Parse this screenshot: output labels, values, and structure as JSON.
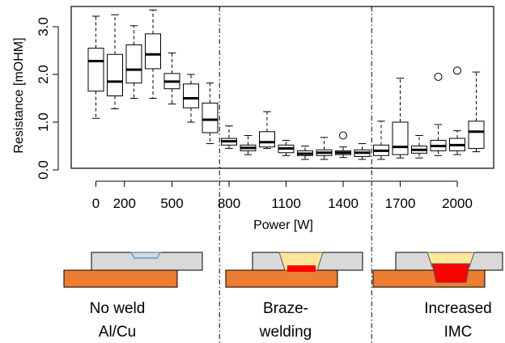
{
  "chart_data": {
    "type": "boxplot",
    "xlabel": "Power [W]",
    "ylabel": "Resistance [mOHM]",
    "ylim": [
      0,
      3.5
    ],
    "yticks": [
      {
        "value": 0.0,
        "label": "0.0"
      },
      {
        "value": 1.0,
        "label": "1.0"
      },
      {
        "value": 2.0,
        "label": "2.0"
      },
      {
        "value": 3.0,
        "label": "3.0"
      }
    ],
    "x_tick_labels": [
      {
        "position": 1,
        "label": "0"
      },
      {
        "position": 2.5,
        "label": "200"
      },
      {
        "position": 5,
        "label": "500"
      },
      {
        "position": 8,
        "label": "800"
      },
      {
        "position": 11,
        "label": "1100"
      },
      {
        "position": 14,
        "label": "1400"
      },
      {
        "position": 17,
        "label": "1700"
      },
      {
        "position": 20,
        "label": "2000"
      }
    ],
    "boxes": [
      {
        "position": 1,
        "whislo": 1.08,
        "q1": 1.65,
        "med": 2.28,
        "q3": 2.55,
        "whishi": 3.22,
        "fliers": []
      },
      {
        "position": 2,
        "whislo": 1.28,
        "q1": 1.55,
        "med": 1.85,
        "q3": 2.42,
        "whishi": 3.25,
        "fliers": []
      },
      {
        "position": 3,
        "whislo": 1.5,
        "q1": 1.82,
        "med": 2.1,
        "q3": 2.62,
        "whishi": 3.02,
        "fliers": []
      },
      {
        "position": 4,
        "whislo": 1.5,
        "q1": 2.12,
        "med": 2.42,
        "q3": 2.85,
        "whishi": 3.35,
        "fliers": []
      },
      {
        "position": 5,
        "whislo": 1.38,
        "q1": 1.7,
        "med": 1.85,
        "q3": 2.02,
        "whishi": 2.45,
        "fliers": []
      },
      {
        "position": 6,
        "whislo": 1.0,
        "q1": 1.3,
        "med": 1.5,
        "q3": 1.8,
        "whishi": 2.0,
        "fliers": []
      },
      {
        "position": 7,
        "whislo": 0.55,
        "q1": 0.78,
        "med": 1.05,
        "q3": 1.4,
        "whishi": 1.82,
        "fliers": []
      },
      {
        "position": 8,
        "whislo": 0.45,
        "q1": 0.52,
        "med": 0.6,
        "q3": 0.66,
        "whishi": 0.92,
        "fliers": []
      },
      {
        "position": 9,
        "whislo": 0.32,
        "q1": 0.4,
        "med": 0.46,
        "q3": 0.52,
        "whishi": 0.72,
        "fliers": []
      },
      {
        "position": 10,
        "whislo": 0.45,
        "q1": 0.48,
        "med": 0.58,
        "q3": 0.8,
        "whishi": 1.22,
        "fliers": []
      },
      {
        "position": 11,
        "whislo": 0.3,
        "q1": 0.36,
        "med": 0.45,
        "q3": 0.52,
        "whishi": 0.62,
        "fliers": []
      },
      {
        "position": 12,
        "whislo": 0.22,
        "q1": 0.3,
        "med": 0.34,
        "q3": 0.4,
        "whishi": 0.5,
        "fliers": []
      },
      {
        "position": 13,
        "whislo": 0.22,
        "q1": 0.3,
        "med": 0.36,
        "q3": 0.42,
        "whishi": 0.68,
        "fliers": []
      },
      {
        "position": 14,
        "whislo": 0.26,
        "q1": 0.32,
        "med": 0.36,
        "q3": 0.4,
        "whishi": 0.48,
        "fliers": [
          0.72
        ]
      },
      {
        "position": 15,
        "whislo": 0.22,
        "q1": 0.28,
        "med": 0.36,
        "q3": 0.42,
        "whishi": 0.55,
        "fliers": []
      },
      {
        "position": 16,
        "whislo": 0.22,
        "q1": 0.3,
        "med": 0.4,
        "q3": 0.52,
        "whishi": 1.02,
        "fliers": []
      },
      {
        "position": 17,
        "whislo": 0.25,
        "q1": 0.32,
        "med": 0.48,
        "q3": 1.0,
        "whishi": 1.92,
        "fliers": []
      },
      {
        "position": 18,
        "whislo": 0.25,
        "q1": 0.35,
        "med": 0.42,
        "q3": 0.5,
        "whishi": 0.72,
        "fliers": []
      },
      {
        "position": 19,
        "whislo": 0.3,
        "q1": 0.4,
        "med": 0.5,
        "q3": 0.62,
        "whishi": 0.95,
        "fliers": [
          1.95
        ]
      },
      {
        "position": 20,
        "whislo": 0.32,
        "q1": 0.4,
        "med": 0.52,
        "q3": 0.66,
        "whishi": 0.82,
        "fliers": [
          2.08
        ]
      },
      {
        "position": 21,
        "whislo": 0.38,
        "q1": 0.45,
        "med": 0.8,
        "q3": 1.02,
        "whishi": 2.05,
        "fliers": []
      }
    ],
    "region_dividers": [
      {
        "after_position": 7.5
      },
      {
        "after_position": 15.5
      }
    ],
    "regions": [
      {
        "caption_lines": [
          "No weld",
          "Al/Cu"
        ]
      },
      {
        "caption_lines": [
          "Braze-",
          "welding"
        ]
      },
      {
        "caption_lines": [
          "Increased",
          "IMC"
        ]
      }
    ],
    "grid": false,
    "legend": "none"
  },
  "colors": {
    "copper": "#ed7d31",
    "aluminum": "#d9d9d9",
    "braze": "#ffe699",
    "imc": "#ff0000",
    "weld_pool_edge": "#5b9bd5"
  }
}
